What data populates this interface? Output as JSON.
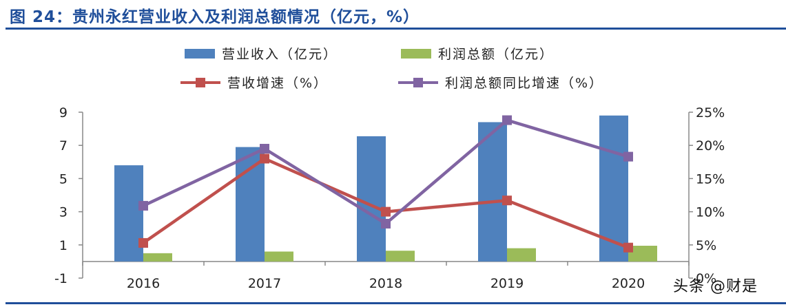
{
  "figure": {
    "title": "图 24：贵州永红营业收入及利润总额情况（亿元，%）"
  },
  "watermark": "头条 @财是",
  "chart_data": {
    "type": "bar+line",
    "categories": [
      "2016",
      "2017",
      "2018",
      "2019",
      "2020"
    ],
    "series": [
      {
        "name": "营业收入（亿元）",
        "kind": "bar",
        "axis": "left",
        "color": "#4f81bd",
        "values": [
          5.8,
          6.9,
          7.55,
          8.4,
          8.8
        ]
      },
      {
        "name": "利润总额（亿元）",
        "kind": "bar",
        "axis": "left",
        "color": "#9bbb59",
        "values": [
          0.5,
          0.6,
          0.65,
          0.8,
          0.95
        ]
      },
      {
        "name": "营收增速（%）",
        "kind": "line",
        "axis": "right",
        "color": "#c0504d",
        "values": [
          5.3,
          18.0,
          10.0,
          11.7,
          4.6
        ]
      },
      {
        "name": "利润总额同比增速（%）",
        "kind": "line",
        "axis": "right",
        "color": "#8064a2",
        "values": [
          10.9,
          19.5,
          8.2,
          23.8,
          18.3
        ]
      }
    ],
    "left_axis": {
      "ylim": [
        -1,
        9
      ],
      "ticks": [
        "-1",
        "1",
        "3",
        "5",
        "7",
        "9"
      ]
    },
    "right_axis": {
      "ylim": [
        0,
        25
      ],
      "ticks": [
        "0%",
        "5%",
        "10%",
        "15%",
        "20%",
        "25%"
      ]
    },
    "grid": false,
    "legend_position": "top"
  }
}
